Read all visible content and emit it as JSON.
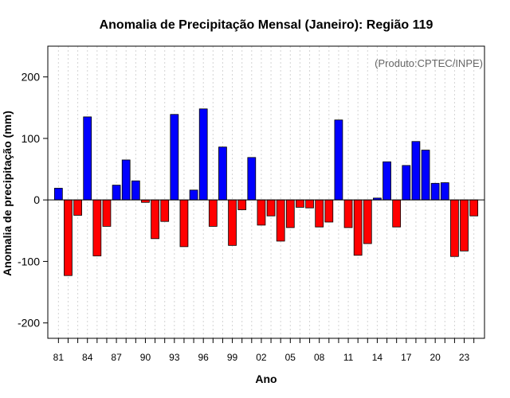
{
  "chart_data": {
    "type": "bar",
    "title": "Anomalia de Precipitação Mensal (Janeiro): Região 119",
    "source_note": "(Produto:CPTEC/INPE)",
    "xlabel": "Ano",
    "ylabel": "Anomalia de precipitação (mm)",
    "ylim": [
      -225,
      250
    ],
    "yticks": [
      -200,
      -100,
      0,
      100,
      200
    ],
    "grid": true,
    "x_tick_labels": [
      "81",
      "84",
      "87",
      "90",
      "93",
      "96",
      "99",
      "02",
      "05",
      "08",
      "11",
      "14",
      "17",
      "20",
      "23"
    ],
    "x_tick_years": [
      1981,
      1984,
      1987,
      1990,
      1993,
      1996,
      1999,
      2002,
      2005,
      2008,
      2011,
      2014,
      2017,
      2020,
      2023
    ],
    "years": [
      1981,
      1982,
      1983,
      1984,
      1985,
      1986,
      1987,
      1988,
      1989,
      1990,
      1991,
      1992,
      1993,
      1994,
      1995,
      1996,
      1997,
      1998,
      1999,
      2000,
      2001,
      2002,
      2003,
      2004,
      2005,
      2006,
      2007,
      2008,
      2009,
      2010,
      2011,
      2012,
      2013,
      2014,
      2015,
      2016,
      2017,
      2018,
      2019,
      2020,
      2021,
      2022,
      2023,
      2024
    ],
    "values": [
      19,
      -123,
      -25,
      135,
      -91,
      -43,
      24,
      65,
      31,
      -4,
      -63,
      -35,
      139,
      -76,
      16,
      148,
      -43,
      86,
      -74,
      -16,
      69,
      -41,
      -26,
      -67,
      -45,
      -12,
      -13,
      -44,
      -36,
      130,
      -45,
      -90,
      -71,
      3,
      62,
      -44,
      56,
      95,
      81,
      27,
      28,
      -92,
      -83,
      -26
    ],
    "colors": {
      "positive": "#0000ff",
      "negative": "#ff0000",
      "grid": "#d3d3d3",
      "zero_line": "#000000"
    }
  }
}
